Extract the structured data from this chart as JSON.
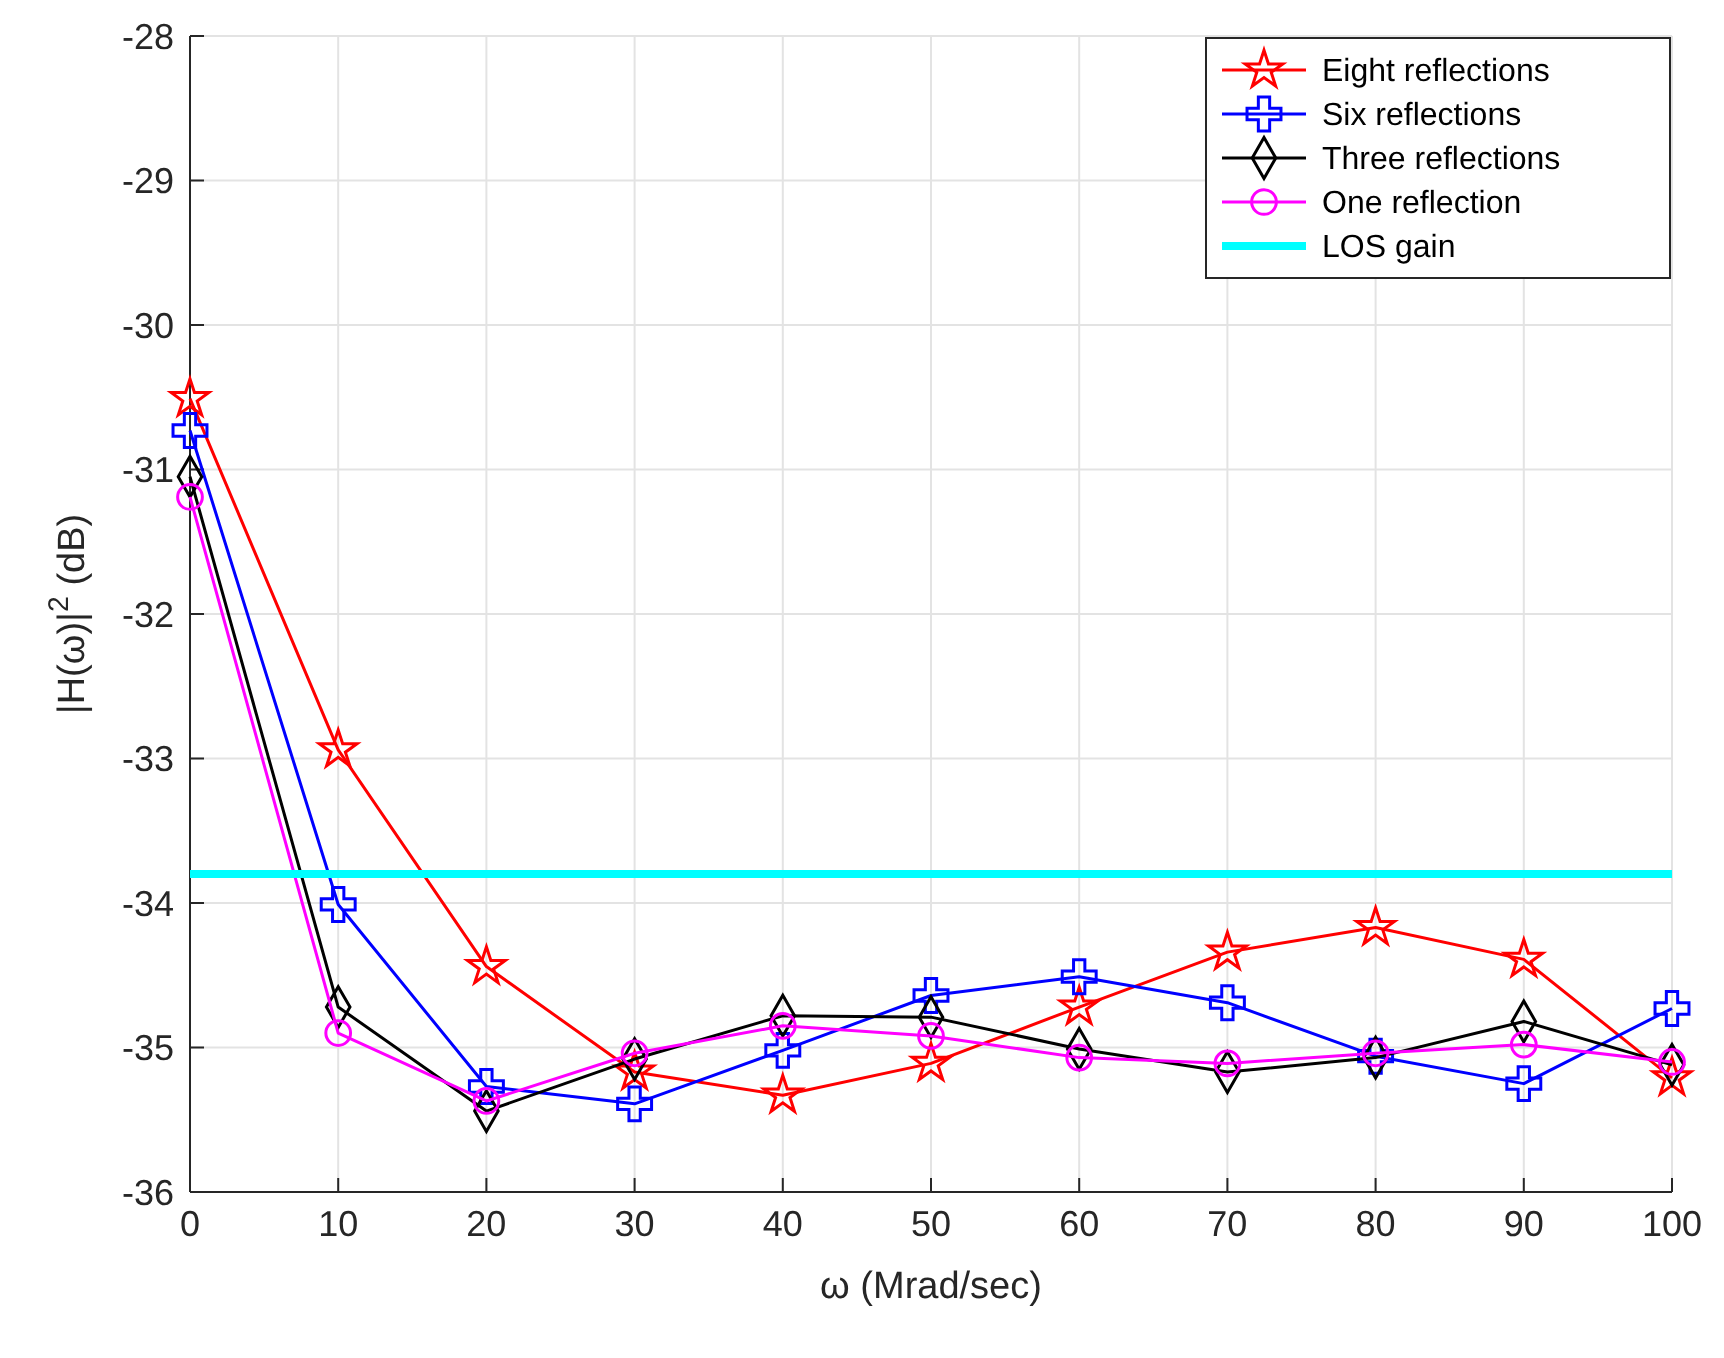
{
  "chart_data": {
    "type": "line",
    "xlabel": "ω (Mrad/sec)",
    "ylabel": "|H(ω)|$^{2}$  (dB)",
    "x": [
      0,
      10,
      20,
      30,
      40,
      50,
      60,
      70,
      80,
      90,
      100
    ],
    "xlim": [
      0,
      100
    ],
    "xticks": [
      0,
      10,
      20,
      30,
      40,
      50,
      60,
      70,
      80,
      90,
      100
    ],
    "ylim": [
      -36,
      -28
    ],
    "yticks": [
      -36,
      -35,
      -34,
      -33,
      -32,
      -31,
      -30,
      -29,
      -28
    ],
    "grid": true,
    "legend": "top right",
    "line_style": "solid",
    "series": [
      {
        "name": "Eight reflections",
        "color": "#ff0000",
        "marker": "star",
        "values": [
          -30.51,
          -32.94,
          -34.44,
          -35.17,
          -35.33,
          -35.11,
          -34.72,
          -34.34,
          -34.17,
          -34.39,
          -35.21
        ]
      },
      {
        "name": "Six reflections",
        "color": "#0000ff",
        "marker": "cross",
        "values": [
          -30.73,
          -34.01,
          -35.27,
          -35.39,
          -35.02,
          -34.64,
          -34.51,
          -34.69,
          -35.06,
          -35.25,
          -34.73
        ]
      },
      {
        "name": "Three reflections",
        "color": "#000000",
        "marker": "diamond",
        "values": [
          -31.05,
          -34.72,
          -35.44,
          -35.08,
          -34.78,
          -34.79,
          -35.01,
          -35.17,
          -35.07,
          -34.82,
          -35.12
        ]
      },
      {
        "name": "One reflection",
        "color": "#ff00ff",
        "marker": "circle",
        "values": [
          -31.19,
          -34.9,
          -35.37,
          -35.04,
          -34.85,
          -34.92,
          -35.07,
          -35.11,
          -35.04,
          -34.98,
          -35.1
        ]
      },
      {
        "name": "LOS gain",
        "color": "#00ffff",
        "marker": "none",
        "x": [
          0,
          100
        ],
        "values": [
          -33.8,
          -33.8
        ]
      }
    ]
  }
}
